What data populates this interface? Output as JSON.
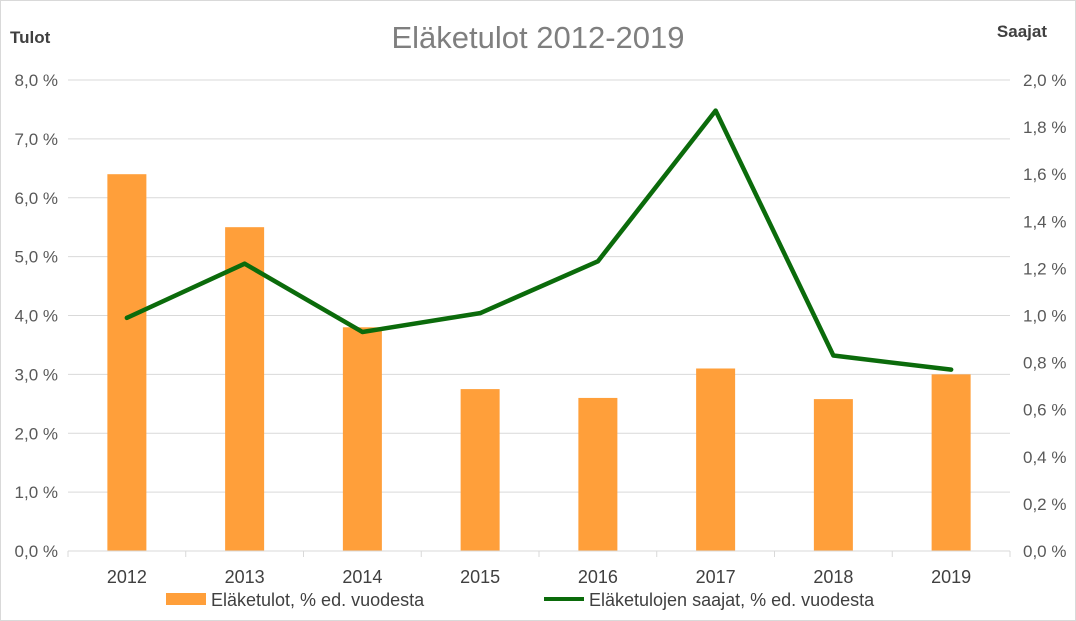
{
  "chart_data": {
    "type": "bar",
    "title": "Eläketulot  2012-2019",
    "categories": [
      "2012",
      "2013",
      "2014",
      "2015",
      "2016",
      "2017",
      "2018",
      "2019"
    ],
    "y_left": {
      "label": "Tulot",
      "min": 0,
      "max": 8,
      "step": 1,
      "tick_labels": [
        "0,0 %",
        "1,0 %",
        "2,0 %",
        "3,0 %",
        "4,0 %",
        "5,0 %",
        "6,0 %",
        "7,0 %",
        "8,0 %"
      ]
    },
    "y_right": {
      "label": "Saajat",
      "min": 0,
      "max": 2,
      "step": 0.2,
      "tick_labels": [
        "0,0 %",
        "0,2 %",
        "0,4 %",
        "0,6 %",
        "0,8 %",
        "1,0 %",
        "1,2 %",
        "1,4 %",
        "1,6 %",
        "1,8 %",
        "2,0 %"
      ]
    },
    "series": [
      {
        "name": "Eläketulot, % ed. vuodesta",
        "type": "bar",
        "axis": "left",
        "color": "#ff9f3a",
        "values": [
          6.4,
          5.5,
          3.8,
          2.75,
          2.6,
          3.1,
          2.58,
          3.0
        ]
      },
      {
        "name": "Eläketulojen saajat, % ed. vuodesta",
        "type": "line",
        "axis": "right",
        "color": "#0b6b0b",
        "values": [
          0.99,
          1.22,
          0.93,
          1.01,
          1.23,
          1.87,
          0.83,
          0.77
        ]
      }
    ],
    "grid": true,
    "legend_position": "bottom"
  }
}
